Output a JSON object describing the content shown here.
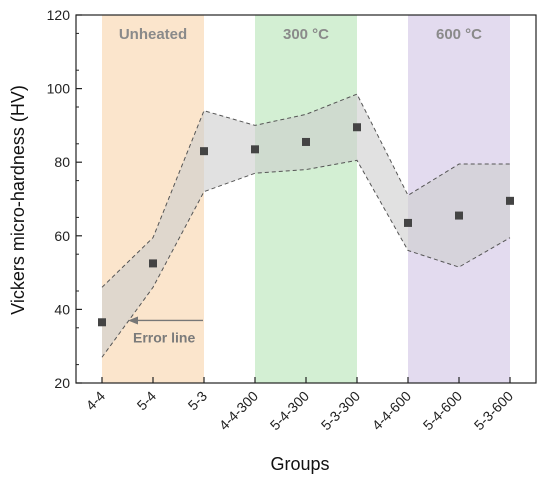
{
  "chart_data": {
    "type": "scatter",
    "title": "",
    "xlabel": "Groups",
    "ylabel": "Vickers micro-hardness (HV)",
    "ylim": [
      20,
      120
    ],
    "yticks": [
      20,
      40,
      60,
      80,
      100,
      120
    ],
    "categories": [
      "4-4",
      "5-4",
      "5-3",
      "4-4-300",
      "5-4-300",
      "5-3-300",
      "4-4-600",
      "5-4-600",
      "5-3-600"
    ],
    "values": [
      36.5,
      52.5,
      83,
      83.5,
      85.5,
      89.5,
      63.5,
      65.5,
      69.5
    ],
    "upper": [
      46,
      59.5,
      94,
      90,
      93,
      98.5,
      71,
      79.5,
      79.5
    ],
    "lower": [
      27,
      46,
      72,
      77,
      78,
      80.5,
      56,
      51.5,
      59.5
    ],
    "bands": [
      {
        "label": "Unheated",
        "from": 0,
        "to": 2,
        "color": "#fbe5cc"
      },
      {
        "label": "300 °C",
        "from": 3,
        "to": 5,
        "color": "#d3efd3"
      },
      {
        "label": "600 °C",
        "from": 6,
        "to": 8,
        "color": "#e3dbef"
      }
    ],
    "annotation": {
      "text": "Error line",
      "arrow_at_index": 0,
      "arrow_y": 37
    },
    "grid": false,
    "marker_color": "#444444",
    "error_fill_color": "#cdcdcd"
  }
}
